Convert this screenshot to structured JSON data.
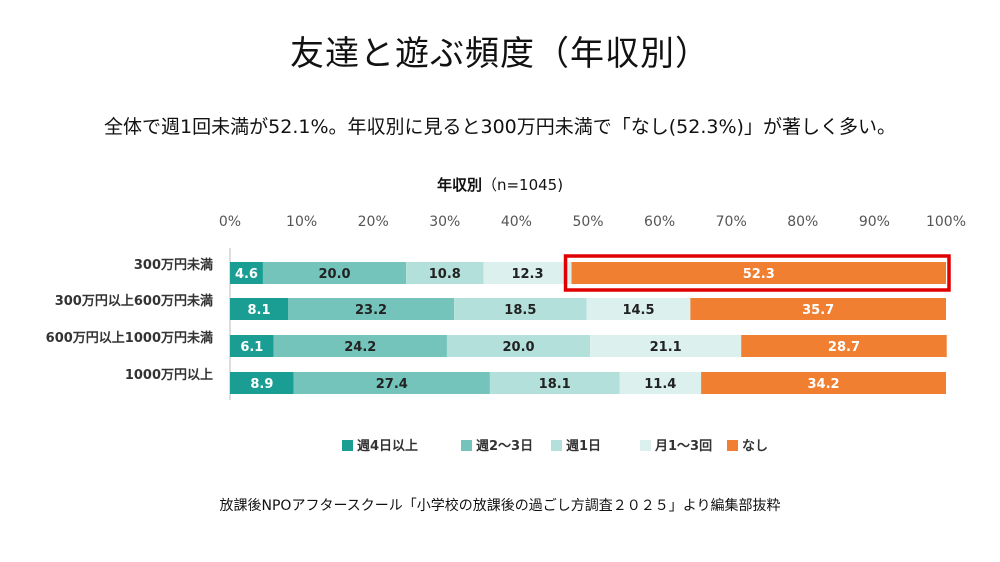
{
  "page": {
    "title": "友達と遊ぶ頻度（年収別）",
    "subtitle": "全体で週1回未満が52.1%。年収別に見ると300万円未満で「なし(52.3%)」が著しく多い。",
    "source": "放課後NPOアフタースクール「小学校の放課後の過ごし方調査２０２５」より編集部抜粋"
  },
  "chart_data": {
    "type": "bar",
    "orientation": "horizontal",
    "stacked": "100%",
    "title_main": "年収別",
    "title_sub": "（n=1045)",
    "categories": [
      "300万円未満",
      "300万円以上600万円未満",
      "600万円以上1000万円未満",
      "1000万円以上"
    ],
    "x_ticks": [
      "0%",
      "10%",
      "20%",
      "30%",
      "40%",
      "50%",
      "60%",
      "70%",
      "80%",
      "90%",
      "100%"
    ],
    "xlim": [
      0,
      100
    ],
    "series": [
      {
        "name": "週4日以上",
        "color": "#1a9e93",
        "values": [
          4.6,
          8.1,
          6.1,
          8.9
        ]
      },
      {
        "name": "週2～3日",
        "color": "#74c4bc",
        "values": [
          20.0,
          23.2,
          24.2,
          27.4
        ]
      },
      {
        "name": "週1日",
        "color": "#b4e0db",
        "values": [
          10.8,
          18.5,
          20.0,
          18.1
        ]
      },
      {
        "name": "月1～3回",
        "color": "#dcf1ee",
        "values": [
          12.3,
          14.5,
          21.1,
          11.4
        ]
      },
      {
        "name": "なし",
        "color": "#f07f32",
        "values": [
          52.3,
          35.7,
          28.7,
          34.2
        ]
      }
    ],
    "label_colors": [
      "#ffffff",
      "#222222",
      "#222222",
      "#222222",
      "#ffffff"
    ],
    "highlight": {
      "category_index": 0,
      "series_index": 4,
      "color": "#e00000"
    },
    "legend_position": "bottom",
    "grid": false
  }
}
